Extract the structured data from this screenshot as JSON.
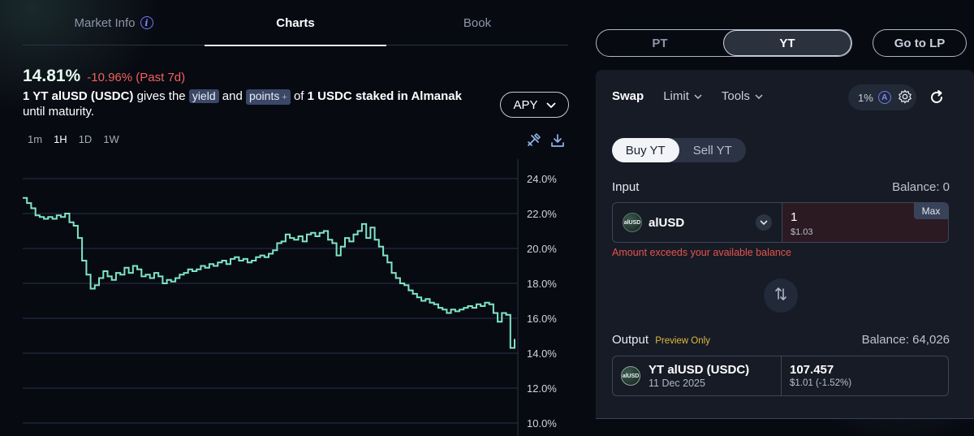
{
  "tabs": {
    "market_info": "Market Info",
    "charts": "Charts",
    "book": "Book"
  },
  "summary": {
    "apy": "14.81%",
    "change": "-10.96% (Past 7d)",
    "desc_part1": "1 YT alUSD (USDC)",
    "desc_part2": "gives the",
    "yield_pill": "yield",
    "desc_and": "and",
    "points_pill": "points",
    "points_plus": "+",
    "desc_of": "of",
    "desc_part3": "1 USDC staked in Almanak",
    "desc_part4": "until maturity.",
    "apy_select": "APY"
  },
  "timeframes": [
    "1m",
    "1H",
    "1D",
    "1W"
  ],
  "timeframe_active": "1H",
  "chart_data": {
    "type": "line",
    "y_tick_labels": [
      "24.0%",
      "22.0%",
      "20.0%",
      "18.0%",
      "16.0%",
      "14.0%",
      "12.0%",
      "10.0%"
    ],
    "ylim": [
      10,
      24
    ],
    "step": true,
    "line_color": "#7ee6c4",
    "grid": true,
    "values": [
      22.9,
      22.6,
      22.3,
      21.9,
      21.8,
      21.7,
      21.8,
      21.7,
      21.9,
      21.8,
      22.0,
      21.5,
      21.3,
      20.6,
      19.3,
      18.5,
      17.7,
      17.9,
      18.3,
      18.7,
      18.4,
      18.2,
      18.6,
      18.5,
      18.9,
      18.6,
      19.0,
      18.8,
      18.4,
      18.5,
      18.3,
      18.6,
      18.4,
      18.0,
      18.2,
      18.1,
      18.3,
      18.5,
      18.6,
      18.8,
      18.7,
      18.8,
      19.0,
      18.9,
      19.1,
      19.0,
      19.2,
      19.3,
      19.1,
      19.4,
      19.5,
      19.3,
      19.4,
      19.2,
      19.3,
      19.5,
      19.6,
      19.5,
      19.7,
      19.9,
      20.3,
      20.4,
      20.8,
      20.6,
      20.5,
      20.7,
      20.4,
      20.8,
      20.9,
      20.7,
      20.9,
      21.0,
      20.5,
      20.3,
      19.6,
      20.1,
      20.6,
      20.4,
      20.8,
      21.0,
      21.4,
      20.6,
      21.2,
      20.5,
      20.1,
      19.6,
      19.2,
      18.6,
      18.3,
      18.0,
      17.9,
      17.6,
      17.4,
      17.2,
      17.0,
      17.1,
      16.9,
      16.8,
      16.6,
      16.5,
      16.3,
      16.5,
      16.4,
      16.5,
      16.6,
      16.7,
      16.6,
      16.8,
      16.7,
      16.9,
      16.8,
      16.3,
      15.8,
      16.3,
      16.2,
      14.3,
      14.8
    ]
  },
  "right": {
    "pt": "PT",
    "yt": "YT",
    "go_lp": "Go to LP",
    "modes": {
      "swap": "Swap",
      "limit": "Limit",
      "tools": "Tools"
    },
    "slippage": "1%",
    "buy_yt": "Buy YT",
    "sell_yt": "Sell YT",
    "input_label": "Input",
    "input_balance": "Balance: 0",
    "input_token": "alUSD",
    "input_token_logo": "alUSD",
    "input_amount": "1",
    "input_usd": "$1.03",
    "max": "Max",
    "error": "Amount exceeds your available balance",
    "output_label": "Output",
    "preview": "Preview Only",
    "output_balance": "Balance: 64,026",
    "output_token": "YT alUSD (USDC)",
    "output_date": "11 Dec 2025",
    "output_token_logo": "alUSD",
    "output_amount": "107.457",
    "output_usd": "$1.01 (-1.52%)"
  },
  "colors": {
    "accent_green": "#7ee6c4",
    "negative_red": "#f0625a",
    "error_red": "#e5534b",
    "preview_gold": "#e2b93b",
    "info_blue": "#6d7cf4"
  }
}
